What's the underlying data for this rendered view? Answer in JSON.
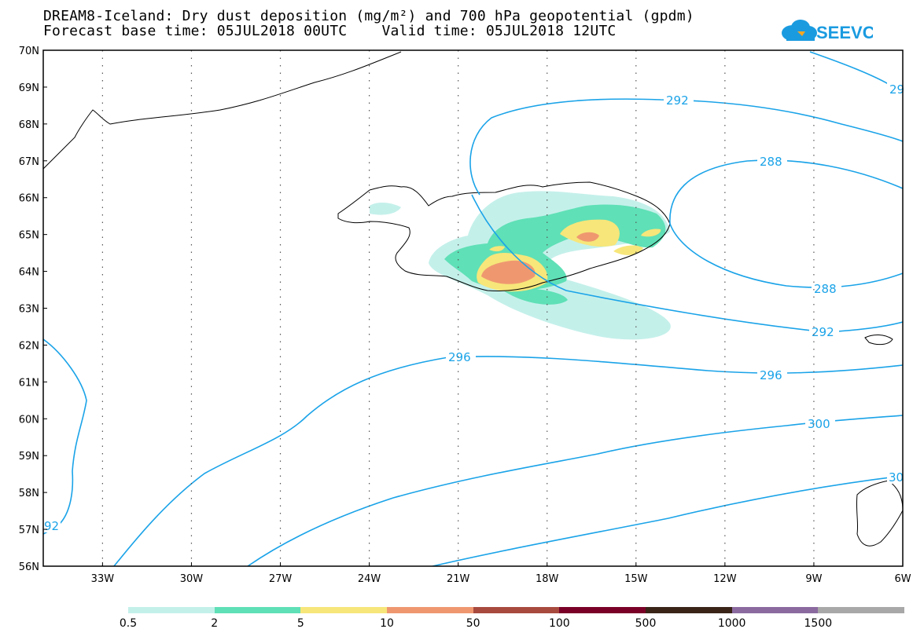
{
  "header": {
    "line1": "DREAM8-Iceland: Dry dust deposition (mg/m²) and 700 hPa geopotential (gpdm)",
    "line2": "Forecast base time: 05JUL2018 00UTC    Valid time: 05JUL2018 12UTC"
  },
  "logo": {
    "text": "SEEVCCC",
    "color": "#1a9be0",
    "accent": "#f5a623"
  },
  "map": {
    "lon_range": [
      -35,
      -6
    ],
    "lat_range": [
      56,
      70
    ],
    "lon_labels": [
      "33W",
      "30W",
      "27W",
      "24W",
      "21W",
      "18W",
      "15W",
      "12W",
      "9W",
      "6W"
    ],
    "lat_labels": [
      "70N",
      "69N",
      "68N",
      "67N",
      "66N",
      "65N",
      "64N",
      "63N",
      "62N",
      "61N",
      "60N",
      "59N",
      "58N",
      "57N",
      "56N"
    ],
    "contour_color": "#1aa3e8",
    "contour_labels": {
      "c292_top": "292",
      "c29_right": "29",
      "c288_top": "288",
      "c288_mid": "288",
      "c292_mid": "292",
      "c296_left": "296",
      "c296_right": "296",
      "c300": "300",
      "c30_right": "30",
      "c92_left": "92"
    }
  },
  "legend": {
    "colors": [
      "#c4f0ea",
      "#5fe0b6",
      "#f7e67a",
      "#ef9870",
      "#a84a3e",
      "#7a0028",
      "#3a2418",
      "#8b6aa0",
      "#a8a8a8"
    ],
    "labels": [
      "0.5",
      "2",
      "5",
      "10",
      "50",
      "100",
      "500",
      "1000",
      "1500"
    ]
  }
}
